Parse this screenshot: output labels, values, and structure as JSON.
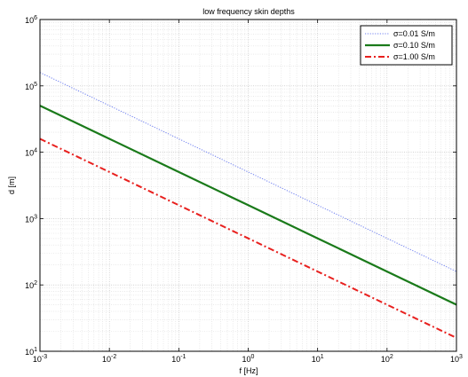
{
  "chart_data": {
    "type": "line",
    "title": "low frequency skin depths",
    "xlabel": "f [Hz]",
    "ylabel": "d [m]",
    "x_scale": "log",
    "y_scale": "log",
    "xlim": [
      0.001,
      1000
    ],
    "ylim": [
      10,
      1000000
    ],
    "grid": true,
    "legend_position": "top-right",
    "x_ticks": [
      0.001,
      0.01,
      0.1,
      1,
      10,
      100,
      1000
    ],
    "x_tick_labels": [
      {
        "base": "10",
        "exp": "-3"
      },
      {
        "base": "10",
        "exp": "-2"
      },
      {
        "base": "10",
        "exp": "-1"
      },
      {
        "base": "10",
        "exp": "0"
      },
      {
        "base": "10",
        "exp": "1"
      },
      {
        "base": "10",
        "exp": "2"
      },
      {
        "base": "10",
        "exp": "3"
      }
    ],
    "y_ticks": [
      10,
      100,
      1000,
      10000,
      100000,
      1000000
    ],
    "y_tick_labels": [
      {
        "base": "10",
        "exp": "1"
      },
      {
        "base": "10",
        "exp": "2"
      },
      {
        "base": "10",
        "exp": "3"
      },
      {
        "base": "10",
        "exp": "4"
      },
      {
        "base": "10",
        "exp": "5"
      },
      {
        "base": "10",
        "exp": "6"
      }
    ],
    "series": [
      {
        "name": "σ=0.01 S/m",
        "color": "#6e7ff0",
        "style": "dotted",
        "x": [
          0.001,
          0.01,
          0.1,
          1,
          10,
          100,
          1000
        ],
        "y": [
          159000,
          50300,
          15900,
          5030,
          1590,
          503,
          159
        ]
      },
      {
        "name": "σ=0.10 S/m",
        "color": "#1a7a1a",
        "style": "solid",
        "x": [
          0.001,
          0.01,
          0.1,
          1,
          10,
          100,
          1000
        ],
        "y": [
          50300,
          15900,
          5030,
          1590,
          503,
          159,
          50.3
        ]
      },
      {
        "name": "σ=1.00 S/m",
        "color": "#e8201e",
        "style": "dashdot",
        "x": [
          0.001,
          0.01,
          0.1,
          1,
          10,
          100,
          1000
        ],
        "y": [
          15900,
          5030,
          1590,
          503,
          159,
          50.3,
          15.9
        ]
      }
    ]
  }
}
